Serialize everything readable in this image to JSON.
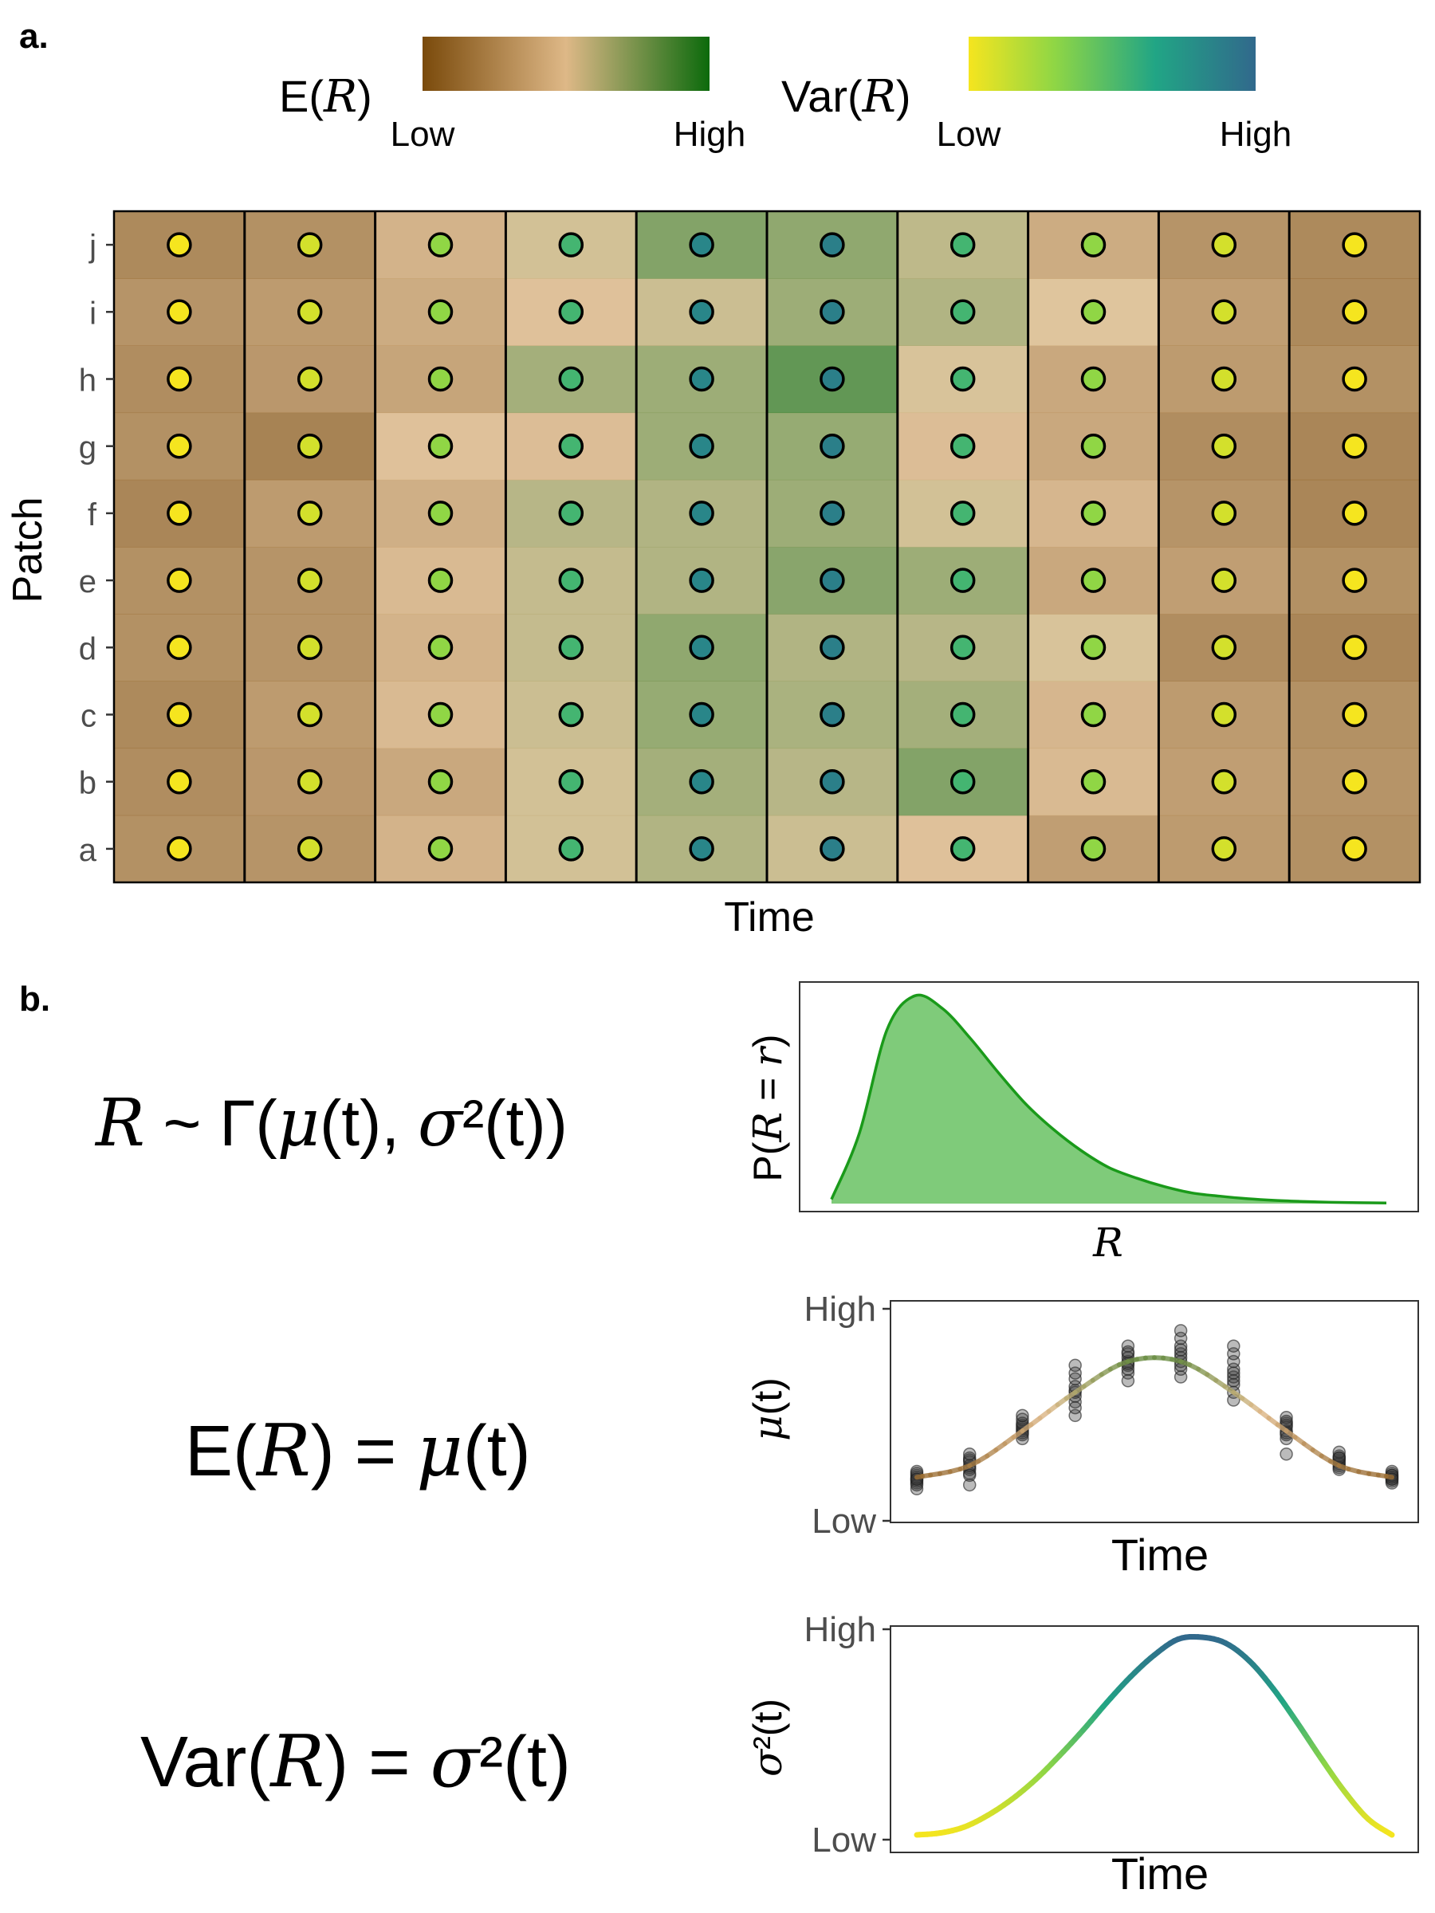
{
  "panel_labels": {
    "a": "a.",
    "b": "b."
  },
  "legend": {
    "mean_title": "E(R)",
    "mean_low": "Low",
    "mean_high": "High",
    "var_title": "Var(R)",
    "var_low": "Low",
    "var_high": "High",
    "mean_colors": [
      "#7a4a0b",
      "#deb887",
      "#0c6a0c"
    ],
    "var_colors": [
      "#f5e51f",
      "#8fd645",
      "#21a585",
      "#31698c"
    ]
  },
  "equations": {
    "dist": "R ~ Γ(μ(t), σ²(t))",
    "mean": "E(R) = μ(t)",
    "variance": "Var(R) = σ²(t)"
  },
  "chart_data": [
    {
      "id": "heatmap",
      "type": "heatmap",
      "xlabel": "Time",
      "ylabel": "Patch",
      "patches": [
        "a",
        "b",
        "c",
        "d",
        "e",
        "f",
        "g",
        "h",
        "i",
        "j"
      ],
      "n_times": 10,
      "mean_level": [
        [
          0.18,
          0.2,
          0.38,
          0.56,
          0.66,
          0.58,
          0.46,
          0.26,
          0.24,
          0.18
        ],
        [
          0.16,
          0.22,
          0.32,
          0.56,
          0.7,
          0.64,
          0.8,
          0.42,
          0.26,
          0.2
        ],
        [
          0.14,
          0.24,
          0.42,
          0.58,
          0.74,
          0.68,
          0.7,
          0.4,
          0.24,
          0.18
        ],
        [
          0.18,
          0.2,
          0.38,
          0.6,
          0.76,
          0.66,
          0.64,
          0.54,
          0.16,
          0.12
        ],
        [
          0.18,
          0.2,
          0.42,
          0.6,
          0.66,
          0.78,
          0.72,
          0.32,
          0.26,
          0.18
        ],
        [
          0.12,
          0.24,
          0.36,
          0.64,
          0.66,
          0.72,
          0.56,
          0.4,
          0.2,
          0.12
        ],
        [
          0.18,
          0.1,
          0.46,
          0.44,
          0.72,
          0.74,
          0.44,
          0.32,
          0.16,
          0.12
        ],
        [
          0.16,
          0.22,
          0.3,
          0.7,
          0.72,
          0.9,
          0.54,
          0.32,
          0.24,
          0.18
        ],
        [
          0.2,
          0.24,
          0.34,
          0.46,
          0.58,
          0.72,
          0.66,
          0.52,
          0.26,
          0.14
        ],
        [
          0.14,
          0.18,
          0.38,
          0.56,
          0.8,
          0.76,
          0.62,
          0.34,
          0.2,
          0.14
        ]
      ],
      "variance_level": [
        0.0,
        0.11,
        0.33,
        0.56,
        0.84,
        0.88,
        0.56,
        0.33,
        0.11,
        0.0
      ]
    },
    {
      "id": "density",
      "type": "area",
      "xlabel": "R",
      "ylabel": "P(R = r)",
      "x": [
        0.0,
        0.05,
        0.1,
        0.15,
        0.2,
        0.25,
        0.3,
        0.35,
        0.4,
        0.45,
        0.5,
        0.55,
        0.6,
        0.65,
        0.7,
        0.75,
        0.8,
        0.85,
        0.9,
        0.95,
        1.0
      ],
      "y": [
        0.02,
        0.33,
        0.82,
        0.98,
        0.92,
        0.78,
        0.62,
        0.47,
        0.35,
        0.25,
        0.17,
        0.12,
        0.08,
        0.05,
        0.035,
        0.023,
        0.015,
        0.01,
        0.006,
        0.004,
        0.003
      ],
      "color": "#1a9a1a",
      "fill": "#7fcb7a"
    },
    {
      "id": "mean",
      "type": "line",
      "xlabel": "Time",
      "ylabel": "μ(t)",
      "yticks": [
        "Low",
        "High"
      ],
      "ylim": [
        0,
        1
      ],
      "curve_x": [
        1,
        2,
        3,
        4,
        5,
        6,
        7,
        8,
        9,
        10
      ],
      "curve_y": [
        0.16,
        0.22,
        0.4,
        0.6,
        0.76,
        0.76,
        0.6,
        0.4,
        0.22,
        0.16
      ],
      "points": [
        [
          0.1,
          0.13,
          0.15,
          0.17,
          0.19,
          0.14,
          0.12,
          0.16,
          0.18,
          0.15
        ],
        [
          0.12,
          0.18,
          0.21,
          0.24,
          0.26,
          0.2,
          0.22,
          0.17,
          0.25,
          0.28
        ],
        [
          0.36,
          0.38,
          0.4,
          0.43,
          0.46,
          0.41,
          0.39,
          0.42,
          0.44,
          0.48
        ],
        [
          0.48,
          0.55,
          0.58,
          0.61,
          0.67,
          0.7,
          0.74,
          0.6,
          0.63,
          0.52
        ],
        [
          0.7,
          0.74,
          0.76,
          0.8,
          0.84,
          0.72,
          0.75,
          0.78,
          0.66,
          0.81
        ],
        [
          0.68,
          0.72,
          0.76,
          0.8,
          0.84,
          0.88,
          0.92,
          0.74,
          0.78,
          0.82
        ],
        [
          0.6,
          0.64,
          0.68,
          0.72,
          0.76,
          0.8,
          0.84,
          0.66,
          0.7,
          0.56
        ],
        [
          0.28,
          0.36,
          0.4,
          0.44,
          0.47,
          0.42,
          0.38,
          0.43,
          0.45,
          0.39
        ],
        [
          0.22,
          0.24,
          0.25,
          0.26,
          0.27,
          0.23,
          0.21,
          0.2,
          0.29,
          0.26
        ],
        [
          0.14,
          0.16,
          0.17,
          0.18,
          0.15,
          0.13,
          0.16,
          0.19,
          0.17,
          0.15
        ]
      ]
    },
    {
      "id": "variance",
      "type": "line",
      "xlabel": "Time",
      "ylabel": "σ²(t)",
      "yticks": [
        "Low",
        "High"
      ],
      "ylim": [
        0,
        1
      ],
      "x": [
        0.0,
        0.05,
        0.1,
        0.15,
        0.2,
        0.25,
        0.3,
        0.35,
        0.4,
        0.45,
        0.5,
        0.55,
        0.6,
        0.65,
        0.7,
        0.75,
        0.8,
        0.85,
        0.9,
        0.95,
        1.0
      ],
      "y": [
        0.0,
        0.01,
        0.04,
        0.1,
        0.18,
        0.28,
        0.4,
        0.53,
        0.67,
        0.8,
        0.91,
        0.99,
        1.0,
        0.97,
        0.88,
        0.74,
        0.57,
        0.39,
        0.22,
        0.08,
        0.0
      ]
    }
  ]
}
